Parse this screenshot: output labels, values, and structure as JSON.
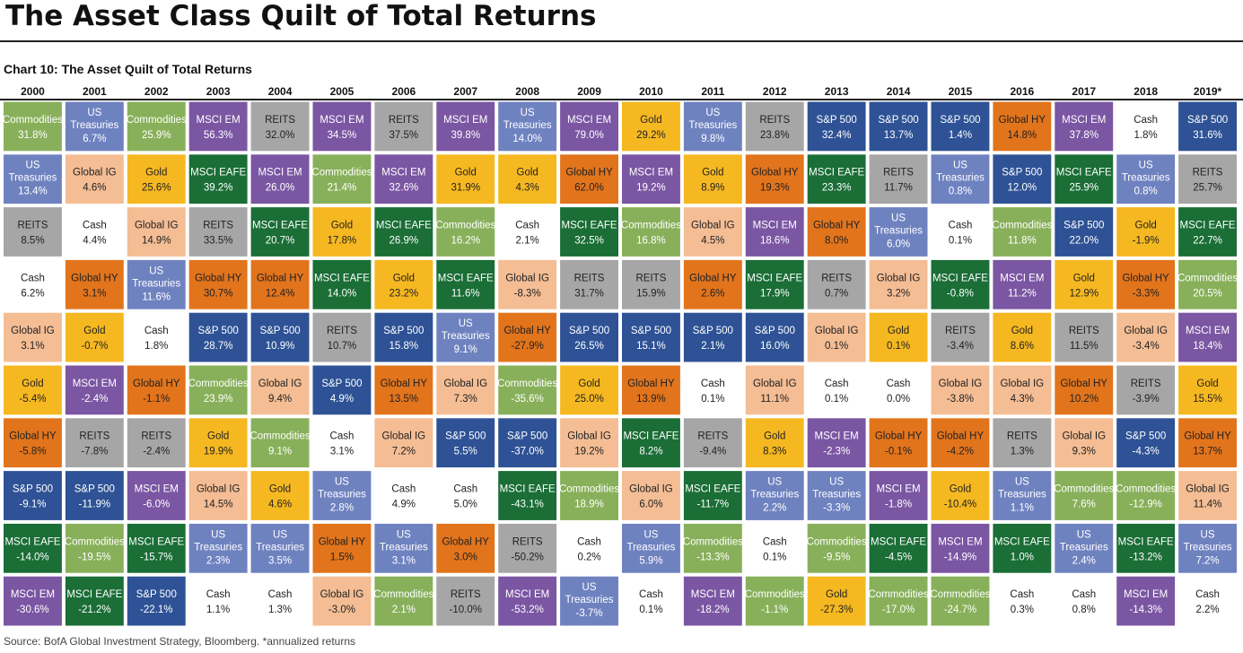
{
  "page": {
    "title": "The Asset Class Quilt of Total Returns",
    "subtitle": "Chart 10: The Asset Quilt of Total Returns",
    "source": "Source: BofA Global Investment Strategy, Bloomberg. *annualized returns"
  },
  "colors": {
    "Commodities": "#88b05a",
    "US Treasuries": "#6f82c0",
    "MSCI EM": "#7b56a3",
    "REITS": "#a6a6a6",
    "Global IG": "#f4bd94",
    "Gold": "#f6b821",
    "Global HY": "#e2741c",
    "MSCI EAFE": "#1a6e36",
    "S&P 500": "#2e5295",
    "Cash": "#ffffff"
  },
  "text_colors": {
    "Commodities": "#ffffff",
    "US Treasuries": "#ffffff",
    "MSCI EM": "#ffffff",
    "REITS": "#222222",
    "Global IG": "#222222",
    "Gold": "#222222",
    "Global HY": "#222222",
    "MSCI EAFE": "#ffffff",
    "S&P 500": "#ffffff",
    "Cash": "#222222"
  },
  "chart_data": {
    "type": "table",
    "title": "Chart 10: The Asset Quilt of Total Returns",
    "years": [
      "2000",
      "2001",
      "2002",
      "2003",
      "2004",
      "2005",
      "2006",
      "2007",
      "2008",
      "2009",
      "2010",
      "2011",
      "2012",
      "2013",
      "2014",
      "2015",
      "2016",
      "2017",
      "2018",
      "2019*"
    ],
    "columns": [
      [
        [
          "Commodities",
          "31.8%"
        ],
        [
          "US Treasuries",
          "13.4%"
        ],
        [
          "REITS",
          "8.5%"
        ],
        [
          "Cash",
          "6.2%"
        ],
        [
          "Global IG",
          "3.1%"
        ],
        [
          "Gold",
          "-5.4%"
        ],
        [
          "Global HY",
          "-5.8%"
        ],
        [
          "S&P 500",
          "-9.1%"
        ],
        [
          "MSCI EAFE",
          "-14.0%"
        ],
        [
          "MSCI EM",
          "-30.6%"
        ]
      ],
      [
        [
          "US Treasuries",
          "6.7%"
        ],
        [
          "Global IG",
          "4.6%"
        ],
        [
          "Cash",
          "4.4%"
        ],
        [
          "Global HY",
          "3.1%"
        ],
        [
          "Gold",
          "-0.7%"
        ],
        [
          "MSCI EM",
          "-2.4%"
        ],
        [
          "REITS",
          "-7.8%"
        ],
        [
          "S&P 500",
          "-11.9%"
        ],
        [
          "Commodities",
          "-19.5%"
        ],
        [
          "MSCI EAFE",
          "-21.2%"
        ]
      ],
      [
        [
          "Commodities",
          "25.9%"
        ],
        [
          "Gold",
          "25.6%"
        ],
        [
          "Global IG",
          "14.9%"
        ],
        [
          "US Treasuries",
          "11.6%"
        ],
        [
          "Cash",
          "1.8%"
        ],
        [
          "Global HY",
          "-1.1%"
        ],
        [
          "REITS",
          "-2.4%"
        ],
        [
          "MSCI EM",
          "-6.0%"
        ],
        [
          "MSCI EAFE",
          "-15.7%"
        ],
        [
          "S&P 500",
          "-22.1%"
        ]
      ],
      [
        [
          "MSCI EM",
          "56.3%"
        ],
        [
          "MSCI EAFE",
          "39.2%"
        ],
        [
          "REITS",
          "33.5%"
        ],
        [
          "Global HY",
          "30.7%"
        ],
        [
          "S&P 500",
          "28.7%"
        ],
        [
          "Commodities",
          "23.9%"
        ],
        [
          "Gold",
          "19.9%"
        ],
        [
          "Global IG",
          "14.5%"
        ],
        [
          "US Treasuries",
          "2.3%"
        ],
        [
          "Cash",
          "1.1%"
        ]
      ],
      [
        [
          "REITS",
          "32.0%"
        ],
        [
          "MSCI EM",
          "26.0%"
        ],
        [
          "MSCI EAFE",
          "20.7%"
        ],
        [
          "Global HY",
          "12.4%"
        ],
        [
          "S&P 500",
          "10.9%"
        ],
        [
          "Global IG",
          "9.4%"
        ],
        [
          "Commodities",
          "9.1%"
        ],
        [
          "Gold",
          "4.6%"
        ],
        [
          "US Treasuries",
          "3.5%"
        ],
        [
          "Cash",
          "1.3%"
        ]
      ],
      [
        [
          "MSCI EM",
          "34.5%"
        ],
        [
          "Commodities",
          "21.4%"
        ],
        [
          "Gold",
          "17.8%"
        ],
        [
          "MSCI EAFE",
          "14.0%"
        ],
        [
          "REITS",
          "10.7%"
        ],
        [
          "S&P 500",
          "4.9%"
        ],
        [
          "Cash",
          "3.1%"
        ],
        [
          "US Treasuries",
          "2.8%"
        ],
        [
          "Global HY",
          "1.5%"
        ],
        [
          "Global IG",
          "-3.0%"
        ]
      ],
      [
        [
          "REITS",
          "37.5%"
        ],
        [
          "MSCI EM",
          "32.6%"
        ],
        [
          "MSCI EAFE",
          "26.9%"
        ],
        [
          "Gold",
          "23.2%"
        ],
        [
          "S&P 500",
          "15.8%"
        ],
        [
          "Global HY",
          "13.5%"
        ],
        [
          "Global IG",
          "7.2%"
        ],
        [
          "Cash",
          "4.9%"
        ],
        [
          "US Treasuries",
          "3.1%"
        ],
        [
          "Commodities",
          "2.1%"
        ]
      ],
      [
        [
          "MSCI EM",
          "39.8%"
        ],
        [
          "Gold",
          "31.9%"
        ],
        [
          "Commodities",
          "16.2%"
        ],
        [
          "MSCI EAFE",
          "11.6%"
        ],
        [
          "US Treasuries",
          "9.1%"
        ],
        [
          "Global IG",
          "7.3%"
        ],
        [
          "S&P 500",
          "5.5%"
        ],
        [
          "Cash",
          "5.0%"
        ],
        [
          "Global HY",
          "3.0%"
        ],
        [
          "REITS",
          "-10.0%"
        ]
      ],
      [
        [
          "US Treasuries",
          "14.0%"
        ],
        [
          "Gold",
          "4.3%"
        ],
        [
          "Cash",
          "2.1%"
        ],
        [
          "Global IG",
          "-8.3%"
        ],
        [
          "Global HY",
          "-27.9%"
        ],
        [
          "Commodities",
          "-35.6%"
        ],
        [
          "S&P 500",
          "-37.0%"
        ],
        [
          "MSCI EAFE",
          "-43.1%"
        ],
        [
          "REITS",
          "-50.2%"
        ],
        [
          "MSCI EM",
          "-53.2%"
        ]
      ],
      [
        [
          "MSCI EM",
          "79.0%"
        ],
        [
          "Global HY",
          "62.0%"
        ],
        [
          "MSCI EAFE",
          "32.5%"
        ],
        [
          "REITS",
          "31.7%"
        ],
        [
          "S&P 500",
          "26.5%"
        ],
        [
          "Gold",
          "25.0%"
        ],
        [
          "Global IG",
          "19.2%"
        ],
        [
          "Commodities",
          "18.9%"
        ],
        [
          "Cash",
          "0.2%"
        ],
        [
          "US Treasuries",
          "-3.7%"
        ]
      ],
      [
        [
          "Gold",
          "29.2%"
        ],
        [
          "MSCI EM",
          "19.2%"
        ],
        [
          "Commodities",
          "16.8%"
        ],
        [
          "REITS",
          "15.9%"
        ],
        [
          "S&P 500",
          "15.1%"
        ],
        [
          "Global HY",
          "13.9%"
        ],
        [
          "MSCI EAFE",
          "8.2%"
        ],
        [
          "Global IG",
          "6.0%"
        ],
        [
          "US Treasuries",
          "5.9%"
        ],
        [
          "Cash",
          "0.1%"
        ]
      ],
      [
        [
          "US Treasuries",
          "9.8%"
        ],
        [
          "Gold",
          "8.9%"
        ],
        [
          "Global IG",
          "4.5%"
        ],
        [
          "Global HY",
          "2.6%"
        ],
        [
          "S&P 500",
          "2.1%"
        ],
        [
          "Cash",
          "0.1%"
        ],
        [
          "REITS",
          "-9.4%"
        ],
        [
          "MSCI EAFE",
          "-11.7%"
        ],
        [
          "Commodities",
          "-13.3%"
        ],
        [
          "MSCI EM",
          "-18.2%"
        ]
      ],
      [
        [
          "REITS",
          "23.8%"
        ],
        [
          "Global HY",
          "19.3%"
        ],
        [
          "MSCI EM",
          "18.6%"
        ],
        [
          "MSCI EAFE",
          "17.9%"
        ],
        [
          "S&P 500",
          "16.0%"
        ],
        [
          "Global IG",
          "11.1%"
        ],
        [
          "Gold",
          "8.3%"
        ],
        [
          "US Treasuries",
          "2.2%"
        ],
        [
          "Cash",
          "0.1%"
        ],
        [
          "Commodities",
          "-1.1%"
        ]
      ],
      [
        [
          "S&P 500",
          "32.4%"
        ],
        [
          "MSCI EAFE",
          "23.3%"
        ],
        [
          "Global HY",
          "8.0%"
        ],
        [
          "REITS",
          "0.7%"
        ],
        [
          "Global IG",
          "0.1%"
        ],
        [
          "Cash",
          "0.1%"
        ],
        [
          "MSCI EM",
          "-2.3%"
        ],
        [
          "US Treasuries",
          "-3.3%"
        ],
        [
          "Commodities",
          "-9.5%"
        ],
        [
          "Gold",
          "-27.3%"
        ]
      ],
      [
        [
          "S&P 500",
          "13.7%"
        ],
        [
          "REITS",
          "11.7%"
        ],
        [
          "US Treasuries",
          "6.0%"
        ],
        [
          "Global IG",
          "3.2%"
        ],
        [
          "Gold",
          "0.1%"
        ],
        [
          "Cash",
          "0.0%"
        ],
        [
          "Global HY",
          "-0.1%"
        ],
        [
          "MSCI EM",
          "-1.8%"
        ],
        [
          "MSCI EAFE",
          "-4.5%"
        ],
        [
          "Commodities",
          "-17.0%"
        ]
      ],
      [
        [
          "S&P 500",
          "1.4%"
        ],
        [
          "US Treasuries",
          "0.8%"
        ],
        [
          "Cash",
          "0.1%"
        ],
        [
          "MSCI EAFE",
          "-0.8%"
        ],
        [
          "REITS",
          "-3.4%"
        ],
        [
          "Global IG",
          "-3.8%"
        ],
        [
          "Global HY",
          "-4.2%"
        ],
        [
          "Gold",
          "-10.4%"
        ],
        [
          "MSCI EM",
          "-14.9%"
        ],
        [
          "Commodities",
          "-24.7%"
        ]
      ],
      [
        [
          "Global HY",
          "14.8%"
        ],
        [
          "S&P 500",
          "12.0%"
        ],
        [
          "Commodities",
          "11.8%"
        ],
        [
          "MSCI EM",
          "11.2%"
        ],
        [
          "Gold",
          "8.6%"
        ],
        [
          "Global IG",
          "4.3%"
        ],
        [
          "REITS",
          "1.3%"
        ],
        [
          "US Treasuries",
          "1.1%"
        ],
        [
          "MSCI EAFE",
          "1.0%"
        ],
        [
          "Cash",
          "0.3%"
        ]
      ],
      [
        [
          "MSCI EM",
          "37.8%"
        ],
        [
          "MSCI EAFE",
          "25.9%"
        ],
        [
          "S&P 500",
          "22.0%"
        ],
        [
          "Gold",
          "12.9%"
        ],
        [
          "REITS",
          "11.5%"
        ],
        [
          "Global HY",
          "10.2%"
        ],
        [
          "Global IG",
          "9.3%"
        ],
        [
          "Commodities",
          "7.6%"
        ],
        [
          "US Treasuries",
          "2.4%"
        ],
        [
          "Cash",
          "0.8%"
        ]
      ],
      [
        [
          "Cash",
          "1.8%"
        ],
        [
          "US Treasuries",
          "0.8%"
        ],
        [
          "Gold",
          "-1.9%"
        ],
        [
          "Global HY",
          "-3.3%"
        ],
        [
          "Global IG",
          "-3.4%"
        ],
        [
          "REITS",
          "-3.9%"
        ],
        [
          "S&P 500",
          "-4.3%"
        ],
        [
          "Commodities",
          "-12.9%"
        ],
        [
          "MSCI EAFE",
          "-13.2%"
        ],
        [
          "MSCI EM",
          "-14.3%"
        ]
      ],
      [
        [
          "S&P 500",
          "31.6%"
        ],
        [
          "REITS",
          "25.7%"
        ],
        [
          "MSCI EAFE",
          "22.7%"
        ],
        [
          "Commodities",
          "20.5%"
        ],
        [
          "MSCI EM",
          "18.4%"
        ],
        [
          "Gold",
          "15.5%"
        ],
        [
          "Global HY",
          "13.7%"
        ],
        [
          "Global IG",
          "11.4%"
        ],
        [
          "US Treasuries",
          "7.2%"
        ],
        [
          "Cash",
          "2.2%"
        ]
      ]
    ]
  }
}
